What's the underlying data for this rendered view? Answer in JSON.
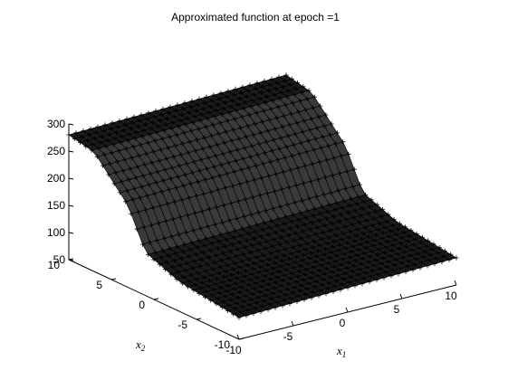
{
  "chart_data": {
    "type": "surface",
    "title": "Approximated function at epoch =1",
    "xlabel": "x",
    "xlabel_sub": "1",
    "ylabel": "x",
    "ylabel_sub": "2",
    "zlabel": "",
    "xlim": [
      -10,
      10
    ],
    "ylim": [
      -10,
      10
    ],
    "zlim": [
      50,
      300
    ],
    "x_ticks": [
      "-10",
      "-5",
      "0",
      "5",
      "10"
    ],
    "y_ticks": [
      "-10",
      "-5",
      "0",
      "5",
      "10"
    ],
    "z_ticks": [
      "50",
      "100",
      "150",
      "200",
      "250",
      "300"
    ],
    "marker": "+",
    "grid_points": 31,
    "surface_profile": [
      {
        "x2": 10,
        "z": 280
      },
      {
        "x2": 7,
        "z": 270
      },
      {
        "x2": 3,
        "z": 200
      },
      {
        "x2": 1,
        "z": 130
      },
      {
        "x2": -3,
        "z": 105
      },
      {
        "x2": -10,
        "z": 90
      }
    ],
    "x1_slope_z": 10,
    "colors": {
      "marker": "#000000",
      "axis": "#000000",
      "background": "#ffffff"
    }
  }
}
